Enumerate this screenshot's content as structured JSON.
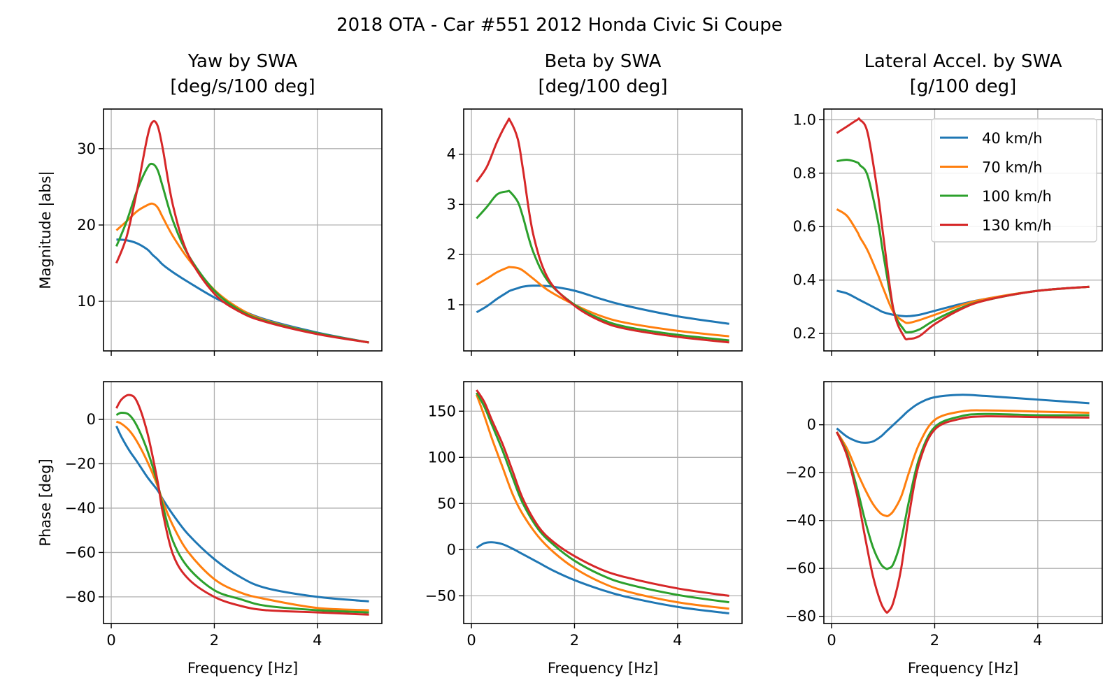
{
  "suptitle": "2018 OTA - Car #551 2012 Honda Civic Si Coupe",
  "legend": {
    "placement": "top-right of Lateral Accel. magnitude panel",
    "entries": [
      "40 km/h",
      "70 km/h",
      "100 km/h",
      "130 km/h"
    ]
  },
  "chart_data": [
    {
      "id": "yaw_mag",
      "type": "line",
      "title": "Yaw by SWA\n[deg/s/100 deg]",
      "xlabel": "",
      "ylabel": "Magnitude |abs|",
      "xlim": [
        -0.15,
        5.25
      ],
      "ylim": [
        3.5,
        35.2
      ],
      "xticks": [
        0,
        2,
        4
      ],
      "xticklabels": [
        "",
        "",
        ""
      ],
      "yticks": [
        10,
        20,
        30
      ],
      "yticklabels": [
        "10",
        "20",
        "30"
      ],
      "grid": true,
      "x": [
        0.1,
        0.3,
        0.5,
        0.7,
        0.8,
        0.9,
        1.0,
        1.2,
        1.5,
        2.0,
        2.5,
        3.0,
        4.0,
        5.0
      ],
      "series": [
        {
          "name": "40 km/h",
          "color": "#1f77b4",
          "values": [
            18.1,
            18.0,
            17.6,
            16.8,
            16.1,
            15.5,
            14.8,
            13.8,
            12.5,
            10.5,
            8.9,
            7.6,
            5.9,
            4.6
          ]
        },
        {
          "name": "70 km/h",
          "color": "#ff7f0e",
          "values": [
            19.3,
            20.5,
            21.8,
            22.6,
            22.8,
            22.3,
            21.0,
            18.5,
            15.5,
            11.5,
            9.0,
            7.5,
            5.8,
            4.6
          ]
        },
        {
          "name": "100 km/h",
          "color": "#2ca02c",
          "values": [
            17.2,
            20.5,
            24.5,
            27.5,
            28.0,
            27.2,
            25.0,
            20.5,
            16.0,
            11.4,
            8.8,
            7.4,
            5.8,
            4.6
          ]
        },
        {
          "name": "130 km/h",
          "color": "#d62728",
          "values": [
            15.0,
            18.5,
            24.5,
            31.5,
            33.5,
            33.0,
            30.0,
            22.5,
            16.0,
            11.0,
            8.6,
            7.3,
            5.7,
            4.6
          ]
        }
      ]
    },
    {
      "id": "beta_mag",
      "type": "line",
      "title": "Beta by SWA\n[deg/100 deg]",
      "xlabel": "",
      "ylabel": "",
      "xlim": [
        -0.15,
        5.25
      ],
      "ylim": [
        0.08,
        4.9
      ],
      "xticks": [
        0,
        2,
        4
      ],
      "xticklabels": [
        "",
        "",
        ""
      ],
      "yticks": [
        1,
        2,
        3,
        4
      ],
      "yticklabels": [
        "1",
        "2",
        "3",
        "4"
      ],
      "grid": true,
      "x": [
        0.1,
        0.3,
        0.5,
        0.7,
        0.75,
        0.9,
        1.0,
        1.2,
        1.5,
        2.0,
        2.5,
        3.0,
        4.0,
        5.0
      ],
      "series": [
        {
          "name": "40 km/h",
          "color": "#1f77b4",
          "values": [
            0.85,
            0.97,
            1.12,
            1.25,
            1.28,
            1.33,
            1.36,
            1.38,
            1.37,
            1.28,
            1.12,
            0.98,
            0.77,
            0.62
          ]
        },
        {
          "name": "70 km/h",
          "color": "#ff7f0e",
          "values": [
            1.4,
            1.52,
            1.65,
            1.74,
            1.75,
            1.73,
            1.68,
            1.52,
            1.28,
            1.0,
            0.78,
            0.64,
            0.48,
            0.37
          ]
        },
        {
          "name": "100 km/h",
          "color": "#2ca02c",
          "values": [
            2.72,
            2.95,
            3.2,
            3.26,
            3.25,
            3.05,
            2.75,
            2.05,
            1.45,
            1.0,
            0.72,
            0.56,
            0.4,
            0.29
          ]
        },
        {
          "name": "130 km/h",
          "color": "#d62728",
          "values": [
            3.45,
            3.75,
            4.25,
            4.65,
            4.67,
            4.3,
            3.7,
            2.4,
            1.5,
            0.98,
            0.68,
            0.52,
            0.36,
            0.25
          ]
        }
      ]
    },
    {
      "id": "latacc_mag",
      "type": "line",
      "title": "Lateral Accel. by SWA\n[g/100 deg]",
      "xlabel": "",
      "ylabel": "",
      "xlim": [
        -0.15,
        5.25
      ],
      "ylim": [
        0.135,
        1.04
      ],
      "xticks": [
        0,
        2,
        4
      ],
      "xticklabels": [
        "",
        "",
        ""
      ],
      "yticks": [
        0.2,
        0.4,
        0.6,
        0.8,
        1.0
      ],
      "yticklabels": [
        "0.2",
        "0.4",
        "0.6",
        "0.8",
        "1.0"
      ],
      "grid": true,
      "x": [
        0.1,
        0.3,
        0.5,
        0.55,
        0.7,
        0.9,
        1.0,
        1.2,
        1.4,
        1.5,
        1.7,
        2.0,
        2.5,
        3.0,
        4.0,
        5.0
      ],
      "series": [
        {
          "name": "40 km/h",
          "color": "#1f77b4",
          "values": [
            0.36,
            0.35,
            0.33,
            0.325,
            0.31,
            0.29,
            0.28,
            0.27,
            0.265,
            0.265,
            0.27,
            0.285,
            0.31,
            0.33,
            0.36,
            0.375
          ]
        },
        {
          "name": "70 km/h",
          "color": "#ff7f0e",
          "values": [
            0.665,
            0.64,
            0.58,
            0.56,
            0.51,
            0.42,
            0.37,
            0.28,
            0.245,
            0.24,
            0.25,
            0.27,
            0.305,
            0.33,
            0.36,
            0.375
          ]
        },
        {
          "name": "100 km/h",
          "color": "#2ca02c",
          "values": [
            0.845,
            0.85,
            0.84,
            0.83,
            0.79,
            0.62,
            0.5,
            0.29,
            0.215,
            0.205,
            0.215,
            0.25,
            0.295,
            0.325,
            0.36,
            0.375
          ]
        },
        {
          "name": "130 km/h",
          "color": "#d62728",
          "values": [
            0.95,
            0.975,
            1.0,
            1.0,
            0.95,
            0.72,
            0.57,
            0.29,
            0.19,
            0.18,
            0.19,
            0.235,
            0.29,
            0.325,
            0.36,
            0.375
          ]
        }
      ]
    },
    {
      "id": "yaw_phase",
      "type": "line",
      "title": "",
      "xlabel": "Frequency [Hz]",
      "ylabel": "Phase [deg]",
      "xlim": [
        -0.15,
        5.25
      ],
      "ylim": [
        -92,
        17
      ],
      "xticks": [
        0,
        2,
        4
      ],
      "xticklabels": [
        "0",
        "2",
        "4"
      ],
      "yticks": [
        -80,
        -60,
        -40,
        -20,
        0
      ],
      "yticklabels": [
        "−80",
        "−60",
        "−40",
        "−20",
        "0"
      ],
      "grid": true,
      "x": [
        0.1,
        0.2,
        0.35,
        0.5,
        0.7,
        0.9,
        1.0,
        1.2,
        1.5,
        2.0,
        2.5,
        3.0,
        4.0,
        5.0
      ],
      "series": [
        {
          "name": "40 km/h",
          "color": "#1f77b4",
          "values": [
            -3,
            -8,
            -14,
            -19,
            -26,
            -32,
            -36,
            -43,
            -52,
            -63,
            -71,
            -76,
            -80,
            -82
          ]
        },
        {
          "name": "70 km/h",
          "color": "#ff7f0e",
          "values": [
            -1,
            -2,
            -5,
            -10,
            -19,
            -30,
            -37,
            -48,
            -60,
            -72,
            -78,
            -81,
            -85,
            -86
          ]
        },
        {
          "name": "100 km/h",
          "color": "#2ca02c",
          "values": [
            2,
            3,
            2,
            -3,
            -14,
            -29,
            -39,
            -55,
            -67,
            -77,
            -81,
            -84,
            -86,
            -87
          ]
        },
        {
          "name": "130 km/h",
          "color": "#d62728",
          "values": [
            5,
            9,
            11,
            8,
            -6,
            -28,
            -42,
            -61,
            -72,
            -80,
            -84,
            -86,
            -87,
            -88
          ]
        }
      ]
    },
    {
      "id": "beta_phase",
      "type": "line",
      "title": "",
      "xlabel": "Frequency [Hz]",
      "ylabel": "",
      "xlim": [
        -0.15,
        5.25
      ],
      "ylim": [
        -80,
        182
      ],
      "xticks": [
        0,
        2,
        4
      ],
      "xticklabels": [
        "0",
        "2",
        "4"
      ],
      "yticks": [
        -50,
        0,
        50,
        100,
        150
      ],
      "yticklabels": [
        "−50",
        "0",
        "50",
        "100",
        "150"
      ],
      "grid": true,
      "x": [
        0.1,
        0.25,
        0.4,
        0.6,
        0.8,
        1.0,
        1.3,
        1.6,
        2.0,
        2.5,
        3.0,
        4.0,
        5.0
      ],
      "series": [
        {
          "name": "40 km/h",
          "color": "#1f77b4",
          "values": [
            2,
            7,
            8,
            6,
            1,
            -5,
            -14,
            -23,
            -33,
            -43,
            -51,
            -62,
            -69
          ]
        },
        {
          "name": "70 km/h",
          "color": "#ff7f0e",
          "values": [
            168,
            145,
            120,
            90,
            60,
            38,
            14,
            -3,
            -20,
            -35,
            -45,
            -57,
            -64
          ]
        },
        {
          "name": "100 km/h",
          "color": "#2ca02c",
          "values": [
            170,
            155,
            135,
            108,
            78,
            50,
            22,
            5,
            -12,
            -27,
            -37,
            -49,
            -57
          ]
        },
        {
          "name": "130 km/h",
          "color": "#d62728",
          "values": [
            173,
            160,
            140,
            115,
            85,
            55,
            25,
            8,
            -7,
            -21,
            -30,
            -42,
            -50
          ]
        }
      ]
    },
    {
      "id": "latacc_phase",
      "type": "line",
      "title": "",
      "xlabel": "Frequency [Hz]",
      "ylabel": "",
      "xlim": [
        -0.15,
        5.25
      ],
      "ylim": [
        -83,
        18
      ],
      "xticks": [
        0,
        2,
        4
      ],
      "xticklabels": [
        "0",
        "2",
        "4"
      ],
      "yticks": [
        -80,
        -60,
        -40,
        -20,
        0
      ],
      "yticklabels": [
        "−80",
        "−60",
        "−40",
        "−20",
        "0"
      ],
      "grid": true,
      "x": [
        0.1,
        0.3,
        0.5,
        0.65,
        0.8,
        0.95,
        1.05,
        1.1,
        1.2,
        1.35,
        1.5,
        1.7,
        2.0,
        2.5,
        3.0,
        4.0,
        5.0
      ],
      "series": [
        {
          "name": "40 km/h",
          "color": "#1f77b4",
          "values": [
            -1.5,
            -5,
            -7,
            -7.5,
            -7,
            -5,
            -3,
            -2,
            0,
            3,
            6,
            9,
            11.5,
            12.5,
            12,
            10.5,
            9
          ]
        },
        {
          "name": "70 km/h",
          "color": "#ff7f0e",
          "values": [
            -3,
            -10,
            -20,
            -27,
            -33,
            -37,
            -38,
            -38,
            -36,
            -30,
            -20,
            -8,
            2,
            5.5,
            6,
            5.5,
            5
          ]
        },
        {
          "name": "100 km/h",
          "color": "#2ca02c",
          "values": [
            -3,
            -12,
            -27,
            -40,
            -51,
            -58,
            -60,
            -60,
            -58,
            -48,
            -32,
            -14,
            -1,
            3.5,
            4.5,
            4,
            4
          ]
        },
        {
          "name": "130 km/h",
          "color": "#d62728",
          "values": [
            -3,
            -13,
            -30,
            -47,
            -63,
            -74,
            -78,
            -78,
            -74,
            -60,
            -38,
            -16,
            -2,
            2.5,
            3.5,
            3.2,
            3
          ]
        }
      ]
    }
  ]
}
